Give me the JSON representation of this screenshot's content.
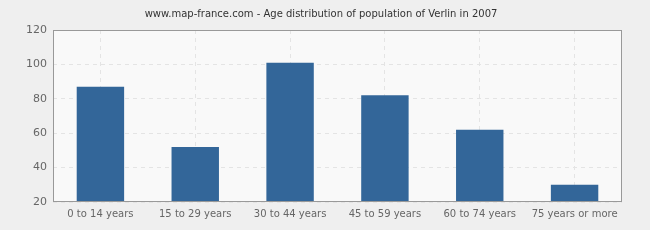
{
  "chart_data": {
    "type": "bar",
    "title": "www.map-france.com - Age distribution of population of Verlin in 2007",
    "categories": [
      "0 to 14 years",
      "15 to 29 years",
      "30 to 44 years",
      "45 to 59 years",
      "60 to 74 years",
      "75 years or more"
    ],
    "values": [
      87,
      52,
      101,
      82,
      62,
      30
    ],
    "color": "#336699",
    "ylim": [
      20,
      120
    ],
    "yticks": [
      20,
      40,
      60,
      80,
      100,
      120
    ],
    "grid": true
  }
}
